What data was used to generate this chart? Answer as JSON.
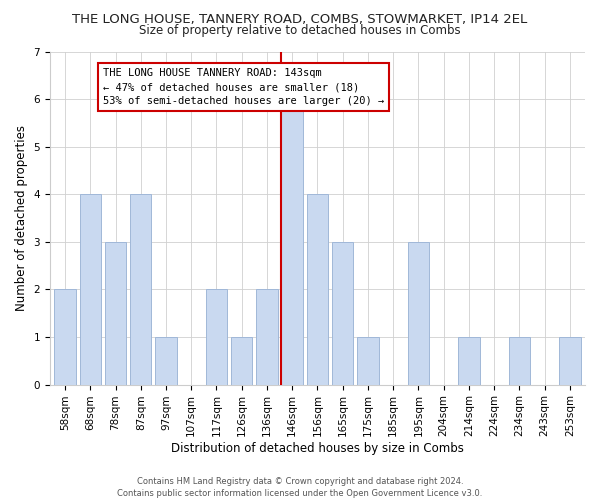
{
  "title": "THE LONG HOUSE, TANNERY ROAD, COMBS, STOWMARKET, IP14 2EL",
  "subtitle": "Size of property relative to detached houses in Combs",
  "xlabel": "Distribution of detached houses by size in Combs",
  "ylabel": "Number of detached properties",
  "bar_labels": [
    "58sqm",
    "68sqm",
    "78sqm",
    "87sqm",
    "97sqm",
    "107sqm",
    "117sqm",
    "126sqm",
    "136sqm",
    "146sqm",
    "156sqm",
    "165sqm",
    "175sqm",
    "185sqm",
    "195sqm",
    "204sqm",
    "214sqm",
    "224sqm",
    "234sqm",
    "243sqm",
    "253sqm"
  ],
  "bar_values": [
    2,
    4,
    3,
    4,
    1,
    0,
    2,
    1,
    2,
    6,
    4,
    3,
    1,
    0,
    3,
    0,
    1,
    0,
    1,
    0,
    1
  ],
  "bar_color": "#c9d9f0",
  "bar_edge_color": "#a0b8d8",
  "marker_bin_index": 9,
  "annotation_title": "THE LONG HOUSE TANNERY ROAD: 143sqm",
  "annotation_line1": "← 47% of detached houses are smaller (18)",
  "annotation_line2": "53% of semi-detached houses are larger (20) →",
  "annotation_box_color": "#ffffff",
  "annotation_box_edge": "#cc0000",
  "marker_line_color": "#cc0000",
  "ylim": [
    0,
    7
  ],
  "footer1": "Contains HM Land Registry data © Crown copyright and database right 2024.",
  "footer2": "Contains public sector information licensed under the Open Government Licence v3.0.",
  "background_color": "#ffffff",
  "title_fontsize": 9.5,
  "subtitle_fontsize": 8.5,
  "axis_fontsize": 8.5,
  "tick_fontsize": 7.5,
  "annot_fontsize": 7.5,
  "footer_fontsize": 6.0
}
